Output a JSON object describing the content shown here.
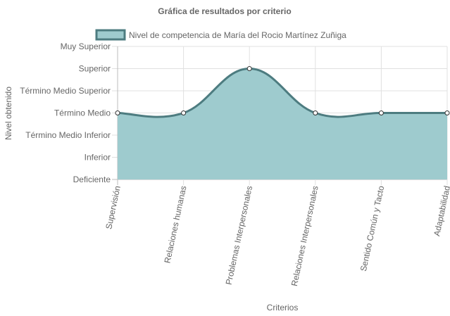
{
  "chart_data": {
    "type": "area",
    "title": "Gráfica de resultados por criterio",
    "xlabel": "Criterios",
    "ylabel": "Nivel obtenido",
    "categories": [
      "Supervisión",
      "Relaciones humanas",
      "Problemas Interpersonales",
      "Relaciones Interpersonales",
      "Sentido Común y Tacto",
      "Adaptabilidad"
    ],
    "y_levels": [
      "Deficiente",
      "Inferior",
      "Término Medio Inferior",
      "Término Medio",
      "Término Medio Superior",
      "Superior",
      "Muy Superior"
    ],
    "series": [
      {
        "name": "Nivel de competencia de María del Rocio Martínez Zuñiga",
        "values": [
          3,
          3,
          5,
          3,
          3,
          3
        ]
      }
    ],
    "ylim": [
      0,
      6
    ],
    "legend_position": "top",
    "grid": true,
    "colors": {
      "fill": "#9ecbce",
      "line": "#4d7c80",
      "point_fill": "#ffffff",
      "point_stroke": "#333333",
      "grid": "#e0e0e0",
      "axis": "#bdbdbd"
    }
  }
}
